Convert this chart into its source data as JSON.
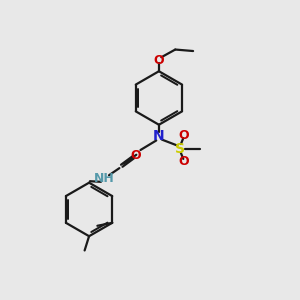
{
  "bg_color": "#e8e8e8",
  "bond_color": "#1a1a1a",
  "N_color": "#2020cc",
  "O_color": "#cc0000",
  "S_color": "#cccc00",
  "NH_color": "#5599aa",
  "line_width": 1.6,
  "figsize": [
    3.0,
    3.0
  ],
  "dpi": 100,
  "xlim": [
    0,
    10
  ],
  "ylim": [
    0,
    10
  ]
}
